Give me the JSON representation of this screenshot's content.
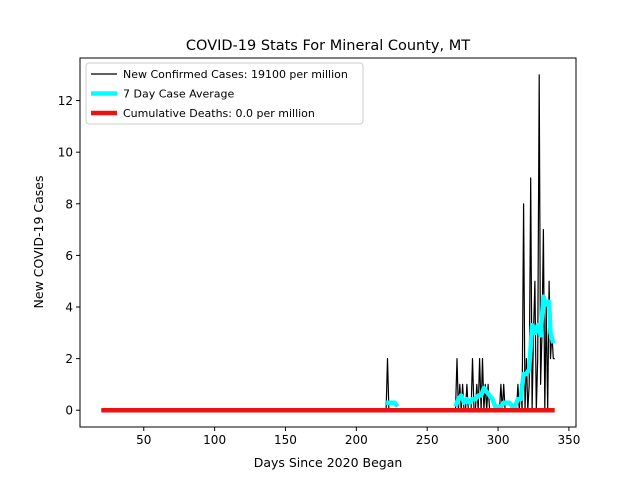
{
  "chart_data": {
    "type": "line",
    "title": "COVID-19 Stats For Mineral County, MT",
    "xlabel": "Days Since 2020 Began",
    "ylabel": "New COVID-19 Cases",
    "xlim": [
      5,
      355
    ],
    "ylim": [
      -0.65,
      13.65
    ],
    "xticks": [
      50,
      100,
      150,
      200,
      250,
      300,
      350
    ],
    "yticks": [
      0,
      2,
      4,
      6,
      8,
      10,
      12
    ],
    "grid": false,
    "legend_position": "top-left",
    "series": [
      {
        "name": "New Confirmed Cases: 19100 per million",
        "color": "#000000",
        "x": [
          20,
          221,
          222,
          223,
          224,
          225,
          226,
          227,
          228,
          229,
          230,
          269,
          270,
          271,
          272,
          273,
          274,
          275,
          276,
          277,
          278,
          279,
          280,
          281,
          282,
          283,
          284,
          285,
          286,
          287,
          288,
          289,
          290,
          291,
          292,
          293,
          294,
          295,
          296,
          297,
          298,
          299,
          300,
          301,
          302,
          303,
          304,
          305,
          306,
          307,
          308,
          309,
          310,
          311,
          312,
          313,
          314,
          315,
          316,
          317,
          318,
          319,
          320,
          321,
          322,
          323,
          324,
          325,
          326,
          327,
          328,
          329,
          330,
          331,
          332,
          333,
          334,
          335,
          336,
          337,
          338,
          339,
          340
        ],
        "y": [
          0,
          0,
          2,
          0,
          0,
          0,
          0,
          0,
          0,
          0,
          0,
          0,
          0,
          2,
          0,
          1,
          0,
          1,
          0,
          0,
          1,
          0,
          0,
          0,
          2,
          0,
          0,
          1,
          0,
          2,
          0,
          2,
          0,
          1,
          0,
          1,
          0,
          0,
          0,
          0,
          0,
          0,
          0,
          0,
          1,
          0,
          1,
          0,
          0,
          0,
          0,
          0,
          0,
          0,
          0,
          0,
          1,
          0,
          1,
          0,
          8,
          0,
          2,
          0,
          1,
          9,
          0,
          3,
          5,
          0,
          2,
          13,
          1,
          3,
          7,
          0,
          4,
          0,
          5,
          2,
          3,
          2,
          2
        ]
      },
      {
        "name": "7 Day Case Average",
        "color": "#00ffff",
        "x": [
          221,
          223,
          225,
          227,
          229,
          270,
          272,
          274,
          276,
          278,
          280,
          282,
          284,
          286,
          288,
          290,
          292,
          294,
          296,
          298,
          300,
          302,
          304,
          306,
          308,
          310,
          312,
          314,
          316,
          318,
          320,
          322,
          324,
          326,
          328,
          330,
          332,
          334,
          336,
          337,
          338,
          339
        ],
        "y": [
          0.29,
          0.29,
          0.29,
          0.29,
          0.14,
          0.14,
          0.43,
          0.57,
          0.29,
          0.43,
          0.29,
          0.43,
          0.43,
          0.57,
          0.57,
          0.86,
          0.71,
          0.57,
          0.43,
          0.14,
          0.14,
          0.14,
          0.29,
          0.29,
          0.29,
          0.14,
          0.14,
          0.43,
          0.43,
          1.4,
          1.4,
          1.6,
          3.3,
          3.0,
          3.3,
          2.9,
          4.4,
          4.1,
          4.2,
          3.0,
          2.8,
          2.6
        ]
      },
      {
        "name": "Cumulative Deaths: 0.0 per million",
        "color": "#ee1111",
        "x": [
          20,
          340
        ],
        "y": [
          0,
          0
        ]
      }
    ]
  }
}
